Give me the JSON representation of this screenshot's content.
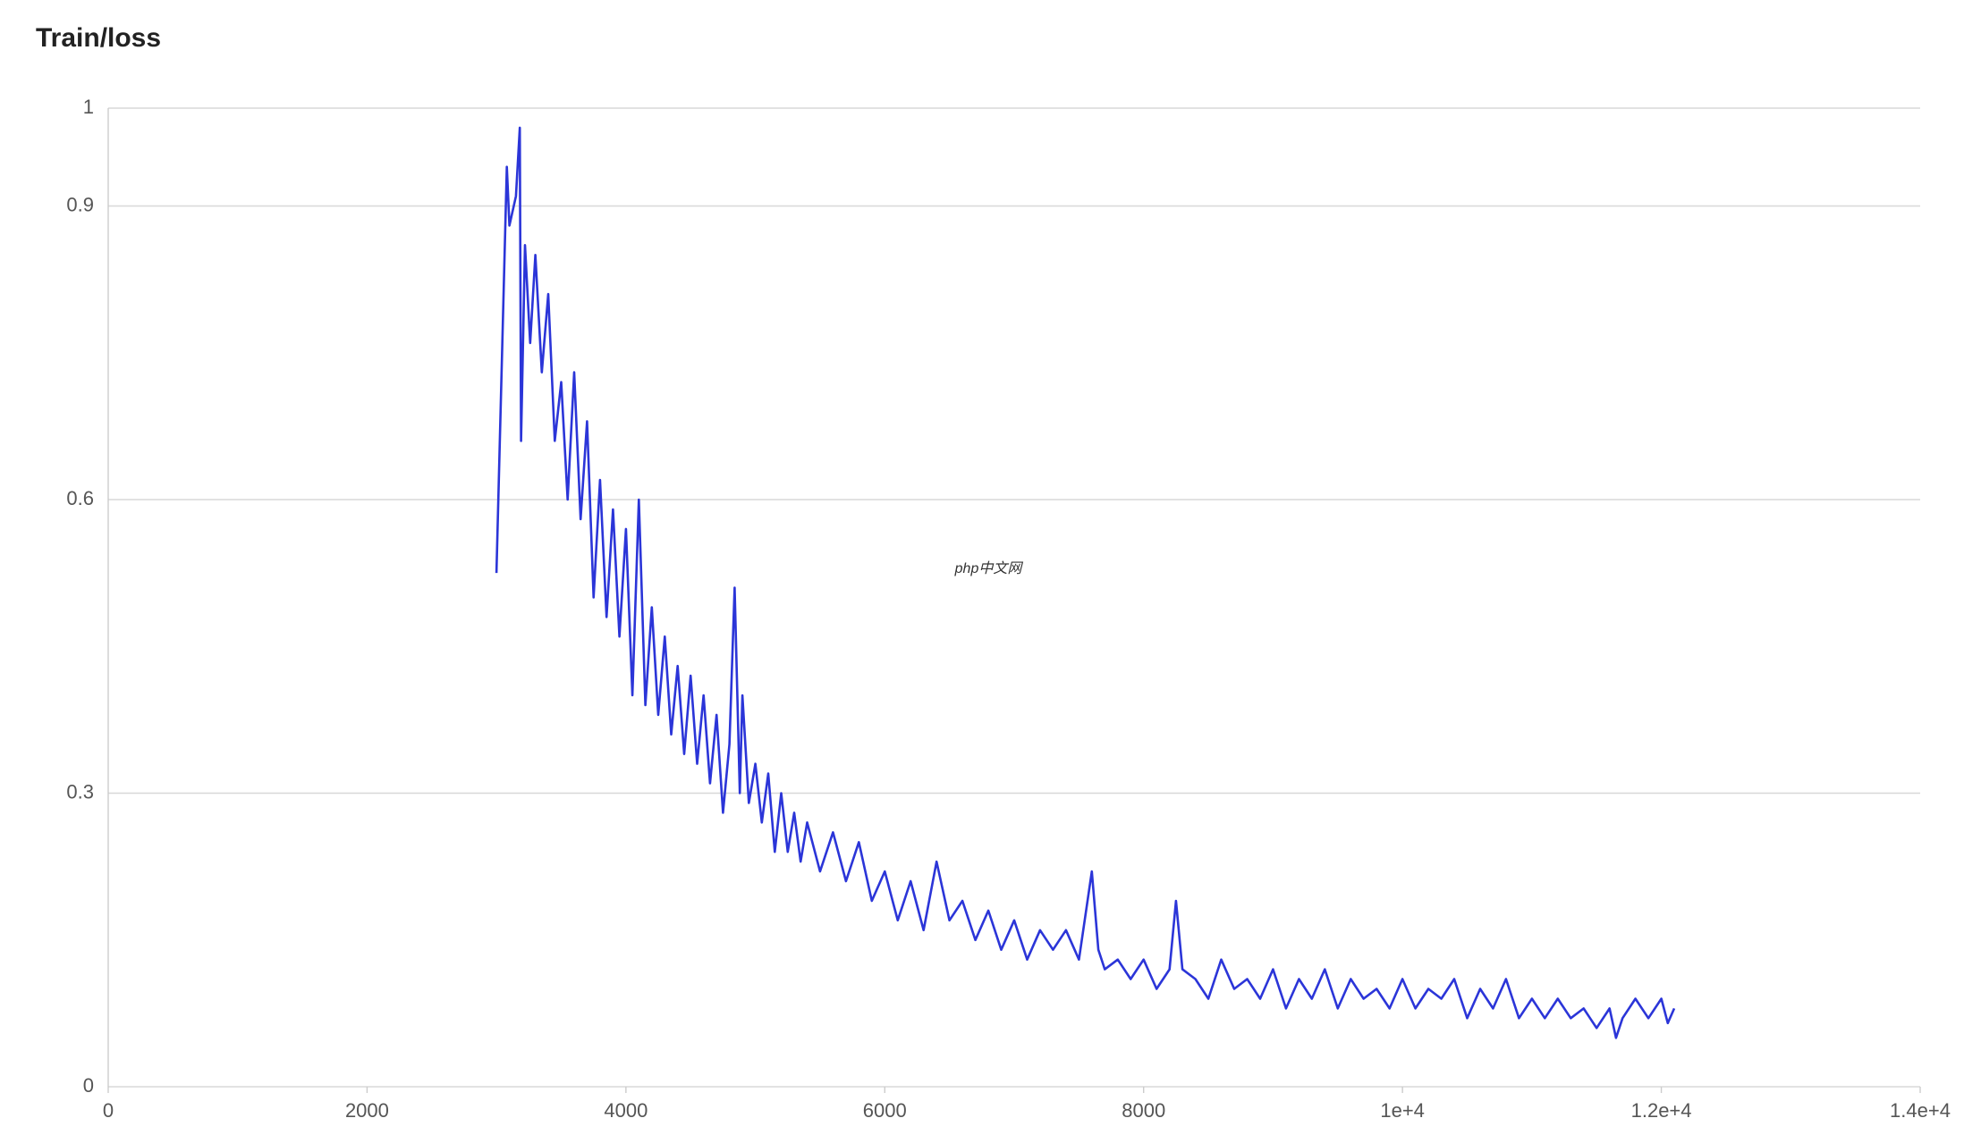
{
  "chart_data": {
    "type": "line",
    "title": "Train/loss",
    "watermark": "php中文网",
    "x": [
      3000,
      3080,
      3100,
      3150,
      3180,
      3190,
      3220,
      3260,
      3300,
      3350,
      3400,
      3450,
      3500,
      3550,
      3600,
      3650,
      3700,
      3750,
      3800,
      3850,
      3900,
      3950,
      4000,
      4050,
      4100,
      4150,
      4200,
      4250,
      4300,
      4350,
      4400,
      4450,
      4500,
      4550,
      4600,
      4650,
      4700,
      4750,
      4800,
      4840,
      4880,
      4900,
      4950,
      5000,
      5050,
      5100,
      5150,
      5200,
      5250,
      5300,
      5350,
      5400,
      5500,
      5600,
      5700,
      5800,
      5900,
      6000,
      6100,
      6200,
      6300,
      6400,
      6500,
      6600,
      6700,
      6800,
      6900,
      7000,
      7100,
      7200,
      7300,
      7400,
      7500,
      7600,
      7650,
      7700,
      7800,
      7900,
      8000,
      8100,
      8200,
      8250,
      8300,
      8400,
      8500,
      8600,
      8700,
      8800,
      8900,
      9000,
      9100,
      9200,
      9300,
      9400,
      9500,
      9600,
      9700,
      9800,
      9900,
      10000,
      10100,
      10200,
      10300,
      10400,
      10500,
      10600,
      10700,
      10800,
      10900,
      11000,
      11100,
      11200,
      11300,
      11400,
      11500,
      11600,
      11650,
      11700,
      11800,
      11900,
      12000,
      12050,
      12100
    ],
    "series": [
      {
        "name": "Train/loss",
        "color": "#2b35d8",
        "values": [
          0.525,
          0.94,
          0.88,
          0.91,
          0.98,
          0.66,
          0.86,
          0.76,
          0.85,
          0.73,
          0.81,
          0.66,
          0.72,
          0.6,
          0.73,
          0.58,
          0.68,
          0.5,
          0.62,
          0.48,
          0.59,
          0.46,
          0.57,
          0.4,
          0.6,
          0.39,
          0.49,
          0.38,
          0.46,
          0.36,
          0.43,
          0.34,
          0.42,
          0.33,
          0.4,
          0.31,
          0.38,
          0.28,
          0.35,
          0.51,
          0.3,
          0.4,
          0.29,
          0.33,
          0.27,
          0.32,
          0.24,
          0.3,
          0.24,
          0.28,
          0.23,
          0.27,
          0.22,
          0.26,
          0.21,
          0.25,
          0.19,
          0.22,
          0.17,
          0.21,
          0.16,
          0.23,
          0.17,
          0.19,
          0.15,
          0.18,
          0.14,
          0.17,
          0.13,
          0.16,
          0.14,
          0.16,
          0.13,
          0.22,
          0.14,
          0.12,
          0.13,
          0.11,
          0.13,
          0.1,
          0.12,
          0.19,
          0.12,
          0.11,
          0.09,
          0.13,
          0.1,
          0.11,
          0.09,
          0.12,
          0.08,
          0.11,
          0.09,
          0.12,
          0.08,
          0.11,
          0.09,
          0.1,
          0.08,
          0.11,
          0.08,
          0.1,
          0.09,
          0.11,
          0.07,
          0.1,
          0.08,
          0.11,
          0.07,
          0.09,
          0.07,
          0.09,
          0.07,
          0.08,
          0.06,
          0.08,
          0.05,
          0.07,
          0.09,
          0.07,
          0.09,
          0.065,
          0.08
        ]
      }
    ],
    "xlim": [
      0,
      14000
    ],
    "xticks": [
      0,
      2000,
      4000,
      6000,
      8000,
      {
        "value": 10000,
        "label": "1e+4"
      },
      {
        "value": 12000,
        "label": "1.2e+4"
      },
      {
        "value": 14000,
        "label": "1.4e+4"
      }
    ],
    "ylim": [
      0,
      1
    ],
    "yticks": [
      0,
      0.3,
      0.6,
      0.9,
      1
    ],
    "grid": true
  }
}
